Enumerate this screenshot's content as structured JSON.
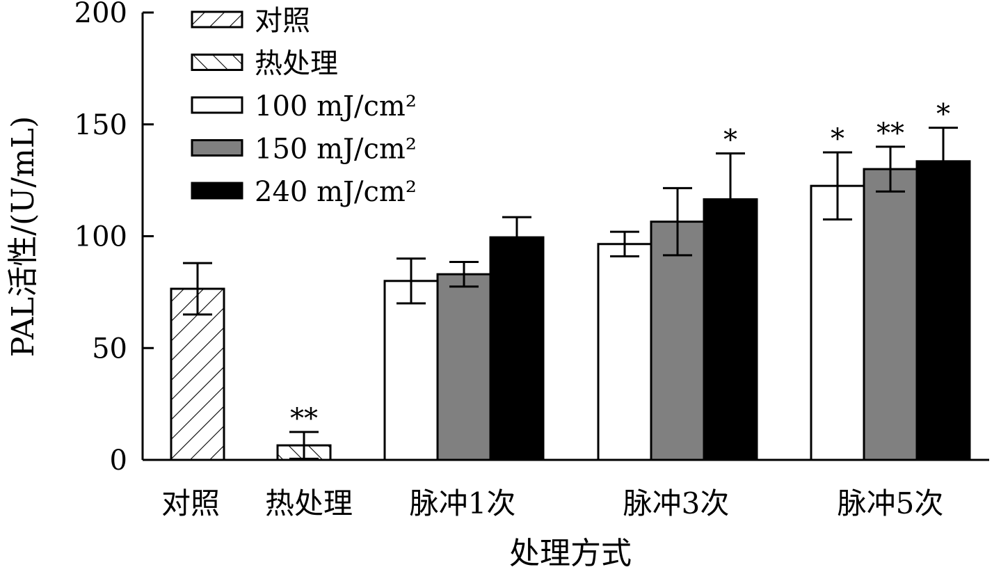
{
  "chart_data": {
    "type": "bar",
    "title": "",
    "xlabel": "处理方式",
    "ylabel": "PAL活性/(U/mL)",
    "ylim": [
      0,
      200
    ],
    "yticks": [
      0,
      50,
      100,
      150,
      200
    ],
    "grid": false,
    "legend_position": "top-left",
    "categories": [
      "对照",
      "热处理",
      "脉冲1次",
      "脉冲3次",
      "脉冲5次"
    ],
    "series": [
      {
        "name": "对照",
        "pattern": "hatch-forward",
        "color": "#ffffff",
        "values": [
          76.5,
          null,
          null,
          null,
          null
        ],
        "errors": [
          11.5,
          null,
          null,
          null,
          null
        ],
        "significance": [
          "",
          null,
          null,
          null,
          null
        ]
      },
      {
        "name": "热处理",
        "pattern": "hatch-backward",
        "color": "#ffffff",
        "values": [
          null,
          6.5,
          null,
          null,
          null
        ],
        "errors": [
          null,
          6,
          null,
          null,
          null
        ],
        "significance": [
          null,
          "**",
          null,
          null,
          null
        ]
      },
      {
        "name": "100 mJ/cm²",
        "pattern": "solid",
        "color": "#ffffff",
        "values": [
          null,
          null,
          80,
          96.5,
          122.5
        ],
        "errors": [
          null,
          null,
          10,
          5.5,
          15
        ],
        "significance": [
          null,
          null,
          "",
          "",
          "*"
        ]
      },
      {
        "name": "150 mJ/cm²",
        "pattern": "solid",
        "color": "#808080",
        "values": [
          null,
          null,
          83,
          106.5,
          130
        ],
        "errors": [
          null,
          null,
          5.5,
          15,
          10
        ],
        "significance": [
          null,
          null,
          "",
          "",
          "**"
        ]
      },
      {
        "name": "240 mJ/cm²",
        "pattern": "solid",
        "color": "#000000",
        "values": [
          null,
          null,
          99.5,
          116.5,
          133.5
        ],
        "errors": [
          null,
          null,
          9,
          20.5,
          15
        ],
        "significance": [
          null,
          null,
          "",
          "*",
          "*"
        ]
      }
    ]
  }
}
